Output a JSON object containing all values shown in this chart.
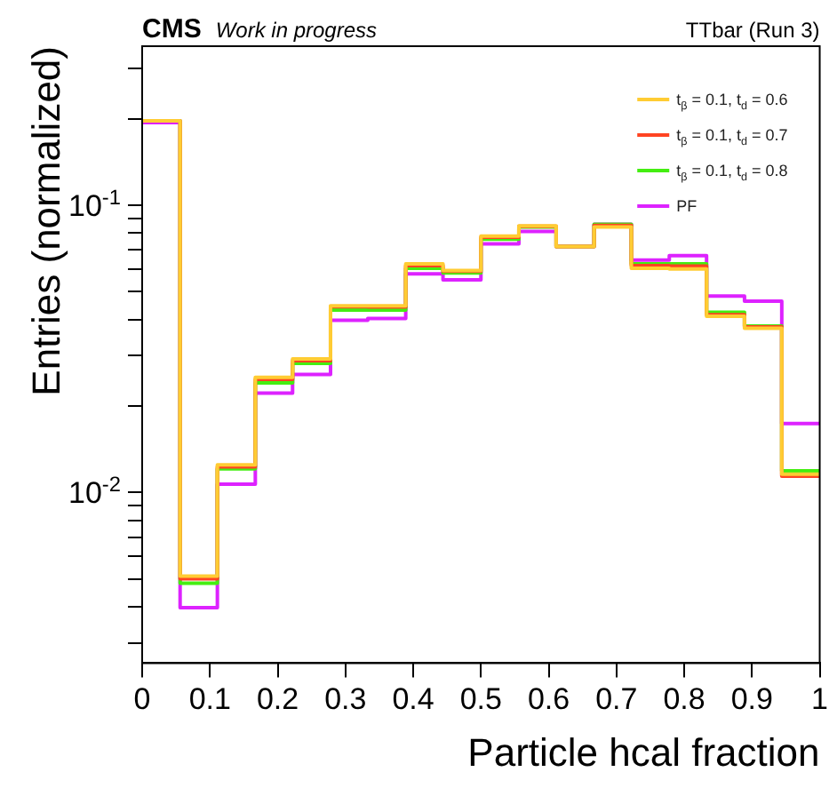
{
  "chart_data": {
    "type": "histogram",
    "title": "CMS",
    "subtitle": "Work in progress",
    "annotations": [
      "TTbar (Run 3)"
    ],
    "xlabel": "Particle hcal fraction",
    "ylabel": "Entries (normalized)",
    "bins": [
      0,
      0.056,
      0.111,
      0.167,
      0.222,
      0.278,
      0.333,
      0.389,
      0.444,
      0.5,
      0.556,
      0.611,
      0.667,
      0.722,
      0.778,
      0.833,
      0.889,
      0.944,
      1
    ],
    "series": [
      {
        "name": "t$_{β}$ = 0.1, t$_{d}$ = 0.6",
        "color": "#ffcc33",
        "values": [
          0.197,
          0.00512,
          0.0125,
          0.0252,
          0.0292,
          0.0447,
          0.0447,
          0.0625,
          0.0593,
          0.0782,
          0.0848,
          0.0719,
          0.084,
          0.0604,
          0.06,
          0.0411,
          0.0373,
          0.0116
        ]
      },
      {
        "name": "t$_{β}$ = 0.1, t$_{d}$ = 0.7",
        "color": "#ff4422",
        "values": [
          0.197,
          0.00501,
          0.0123,
          0.0248,
          0.0288,
          0.0444,
          0.0443,
          0.0617,
          0.059,
          0.0775,
          0.0845,
          0.0719,
          0.0851,
          0.0617,
          0.0615,
          0.0416,
          0.0377,
          0.0114
        ]
      },
      {
        "name": "t$_{β}$ = 0.1, t$_{d}$ = 0.8",
        "color": "#44ee11",
        "values": [
          0.197,
          0.00484,
          0.0121,
          0.0241,
          0.0282,
          0.0432,
          0.0432,
          0.0604,
          0.0582,
          0.0762,
          0.084,
          0.0719,
          0.0859,
          0.0625,
          0.0625,
          0.0424,
          0.038,
          0.0119
        ]
      },
      {
        "name": "PF",
        "color": "#dd22ff",
        "values": [
          0.194,
          0.00398,
          0.0107,
          0.0222,
          0.0258,
          0.0398,
          0.0404,
          0.0577,
          0.055,
          0.0734,
          0.0811,
          0.0719,
          0.0859,
          0.0645,
          0.0668,
          0.0483,
          0.0464,
          0.0174
        ]
      }
    ],
    "xlim": [
      0,
      1
    ],
    "xticks": [
      0,
      0.1,
      0.2,
      0.3,
      0.4,
      0.5,
      0.6,
      0.7,
      0.8,
      0.9,
      1
    ],
    "ylim": [
      0.00255,
      0.358
    ],
    "log": true,
    "yticks": [
      {
        "value": 0.003,
        "label": null
      },
      {
        "value": 0.004,
        "label": null
      },
      {
        "value": 0.005,
        "label": null
      },
      {
        "value": 0.006,
        "label": null
      },
      {
        "value": 0.007,
        "label": null
      },
      {
        "value": 0.008,
        "label": null
      },
      {
        "value": 0.009,
        "label": null
      },
      {
        "value": 0.01,
        "label": "10$^{-2}$"
      },
      {
        "value": 0.02,
        "label": null
      },
      {
        "value": 0.03,
        "label": null
      },
      {
        "value": 0.04,
        "label": null
      },
      {
        "value": 0.05,
        "label": null
      },
      {
        "value": 0.06,
        "label": null
      },
      {
        "value": 0.07,
        "label": null
      },
      {
        "value": 0.08,
        "label": null
      },
      {
        "value": 0.09,
        "label": null
      },
      {
        "value": 0.1,
        "label": "10$^{-1}$"
      },
      {
        "value": 0.2,
        "label": null
      },
      {
        "value": 0.3,
        "label": null
      }
    ],
    "legend": "top right"
  }
}
